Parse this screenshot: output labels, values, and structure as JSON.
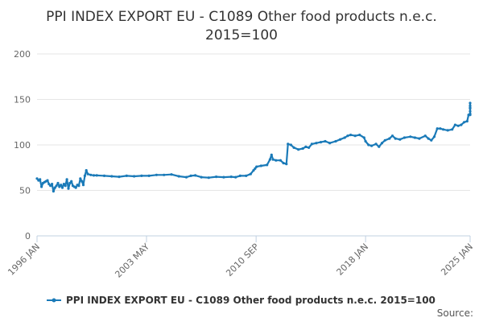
{
  "chart_data": {
    "type": "line",
    "title_lines": [
      "PPI INDEX EXPORT EU - C1089 Other food products n.e.c.",
      "2015=100"
    ],
    "xlabel": "",
    "ylabel": "",
    "x_tick_labels": [
      "1996 JAN",
      "2003 MAY",
      "2010 SEP",
      "2018 JAN",
      "2025 JAN"
    ],
    "x_ticks": [
      1996.0,
      2003.33,
      2010.67,
      2018.0,
      2025.0
    ],
    "xlim": [
      1996.0,
      2025.0
    ],
    "ylim": [
      0,
      200
    ],
    "y_ticks": [
      0,
      50,
      100,
      150,
      200
    ],
    "grid": true,
    "legend_position": "bottom",
    "credit": "Source:",
    "series": [
      {
        "name": "PPI INDEX EXPORT EU - C1089 Other food products n.e.c. 2015=100",
        "color": "#1a7ab8",
        "points": [
          [
            1996.0,
            63
          ],
          [
            1996.1,
            61
          ],
          [
            1996.2,
            62
          ],
          [
            1996.3,
            54
          ],
          [
            1996.4,
            58
          ],
          [
            1996.5,
            59
          ],
          [
            1996.6,
            60
          ],
          [
            1996.7,
            61
          ],
          [
            1996.8,
            57
          ],
          [
            1996.9,
            55
          ],
          [
            1997.0,
            57
          ],
          [
            1997.1,
            49
          ],
          [
            1997.2,
            53
          ],
          [
            1997.3,
            55
          ],
          [
            1997.4,
            58
          ],
          [
            1997.5,
            54
          ],
          [
            1997.6,
            56
          ],
          [
            1997.7,
            53
          ],
          [
            1997.8,
            57
          ],
          [
            1997.9,
            55
          ],
          [
            1998.0,
            62
          ],
          [
            1998.1,
            52
          ],
          [
            1998.2,
            58
          ],
          [
            1998.3,
            60
          ],
          [
            1998.4,
            55
          ],
          [
            1998.5,
            54
          ],
          [
            1998.6,
            53
          ],
          [
            1998.7,
            56
          ],
          [
            1998.8,
            55
          ],
          [
            1998.9,
            63
          ],
          [
            1999.0,
            60
          ],
          [
            1999.1,
            56
          ],
          [
            1999.2,
            66
          ],
          [
            1999.3,
            72
          ],
          [
            1999.4,
            68
          ],
          [
            1999.6,
            67
          ],
          [
            1999.8,
            66.5
          ],
          [
            2000.0,
            66.5
          ],
          [
            2000.5,
            66
          ],
          [
            2001.0,
            65.5
          ],
          [
            2001.5,
            65
          ],
          [
            2002.0,
            66
          ],
          [
            2002.5,
            65.5
          ],
          [
            2003.0,
            66
          ],
          [
            2003.5,
            66
          ],
          [
            2004.0,
            67
          ],
          [
            2004.5,
            67
          ],
          [
            2005.0,
            67.5
          ],
          [
            2005.5,
            65.5
          ],
          [
            2006.0,
            64.5
          ],
          [
            2006.3,
            66
          ],
          [
            2006.6,
            66.5
          ],
          [
            2007.0,
            64.5
          ],
          [
            2007.5,
            64
          ],
          [
            2008.0,
            65
          ],
          [
            2008.5,
            64.5
          ],
          [
            2009.0,
            65
          ],
          [
            2009.3,
            64.5
          ],
          [
            2009.6,
            66
          ],
          [
            2010.0,
            66
          ],
          [
            2010.3,
            68
          ],
          [
            2010.5,
            72
          ],
          [
            2010.6,
            74
          ],
          [
            2010.7,
            76
          ],
          [
            2011.0,
            77
          ],
          [
            2011.4,
            78
          ],
          [
            2011.6,
            84
          ],
          [
            2011.7,
            89
          ],
          [
            2011.8,
            84
          ],
          [
            2012.0,
            83
          ],
          [
            2012.3,
            83
          ],
          [
            2012.5,
            80
          ],
          [
            2012.7,
            79
          ],
          [
            2012.8,
            101
          ],
          [
            2013.0,
            100
          ],
          [
            2013.2,
            97
          ],
          [
            2013.5,
            95
          ],
          [
            2013.8,
            96
          ],
          [
            2014.0,
            98
          ],
          [
            2014.2,
            97
          ],
          [
            2014.4,
            101
          ],
          [
            2014.7,
            102
          ],
          [
            2015.0,
            103
          ],
          [
            2015.3,
            104
          ],
          [
            2015.6,
            102
          ],
          [
            2016.0,
            104
          ],
          [
            2016.3,
            106
          ],
          [
            2016.6,
            108
          ],
          [
            2016.8,
            110
          ],
          [
            2017.0,
            111
          ],
          [
            2017.3,
            110
          ],
          [
            2017.6,
            111
          ],
          [
            2017.9,
            108
          ],
          [
            2018.0,
            104
          ],
          [
            2018.2,
            100
          ],
          [
            2018.4,
            99
          ],
          [
            2018.7,
            101
          ],
          [
            2018.9,
            98
          ],
          [
            2019.1,
            102
          ],
          [
            2019.3,
            105
          ],
          [
            2019.6,
            107
          ],
          [
            2019.8,
            110
          ],
          [
            2020.0,
            107
          ],
          [
            2020.3,
            106
          ],
          [
            2020.6,
            108
          ],
          [
            2021.0,
            109
          ],
          [
            2021.3,
            108
          ],
          [
            2021.6,
            107
          ],
          [
            2022.0,
            110
          ],
          [
            2022.2,
            107
          ],
          [
            2022.4,
            105
          ],
          [
            2022.6,
            109
          ],
          [
            2022.8,
            118
          ],
          [
            2023.0,
            118
          ],
          [
            2023.2,
            117
          ],
          [
            2023.5,
            116
          ],
          [
            2023.8,
            117
          ],
          [
            2024.0,
            122
          ],
          [
            2024.2,
            121
          ],
          [
            2024.4,
            122
          ],
          [
            2024.6,
            125
          ],
          [
            2024.8,
            126
          ],
          [
            2024.9,
            133
          ],
          [
            2025.0,
            134
          ],
          [
            2025.2,
            133
          ],
          [
            2025.5,
            134
          ],
          [
            2025.8,
            137
          ],
          [
            2026.0,
            141
          ],
          [
            2026.3,
            143
          ],
          [
            2026.6,
            140
          ],
          [
            2026.8,
            146
          ]
        ]
      }
    ]
  }
}
